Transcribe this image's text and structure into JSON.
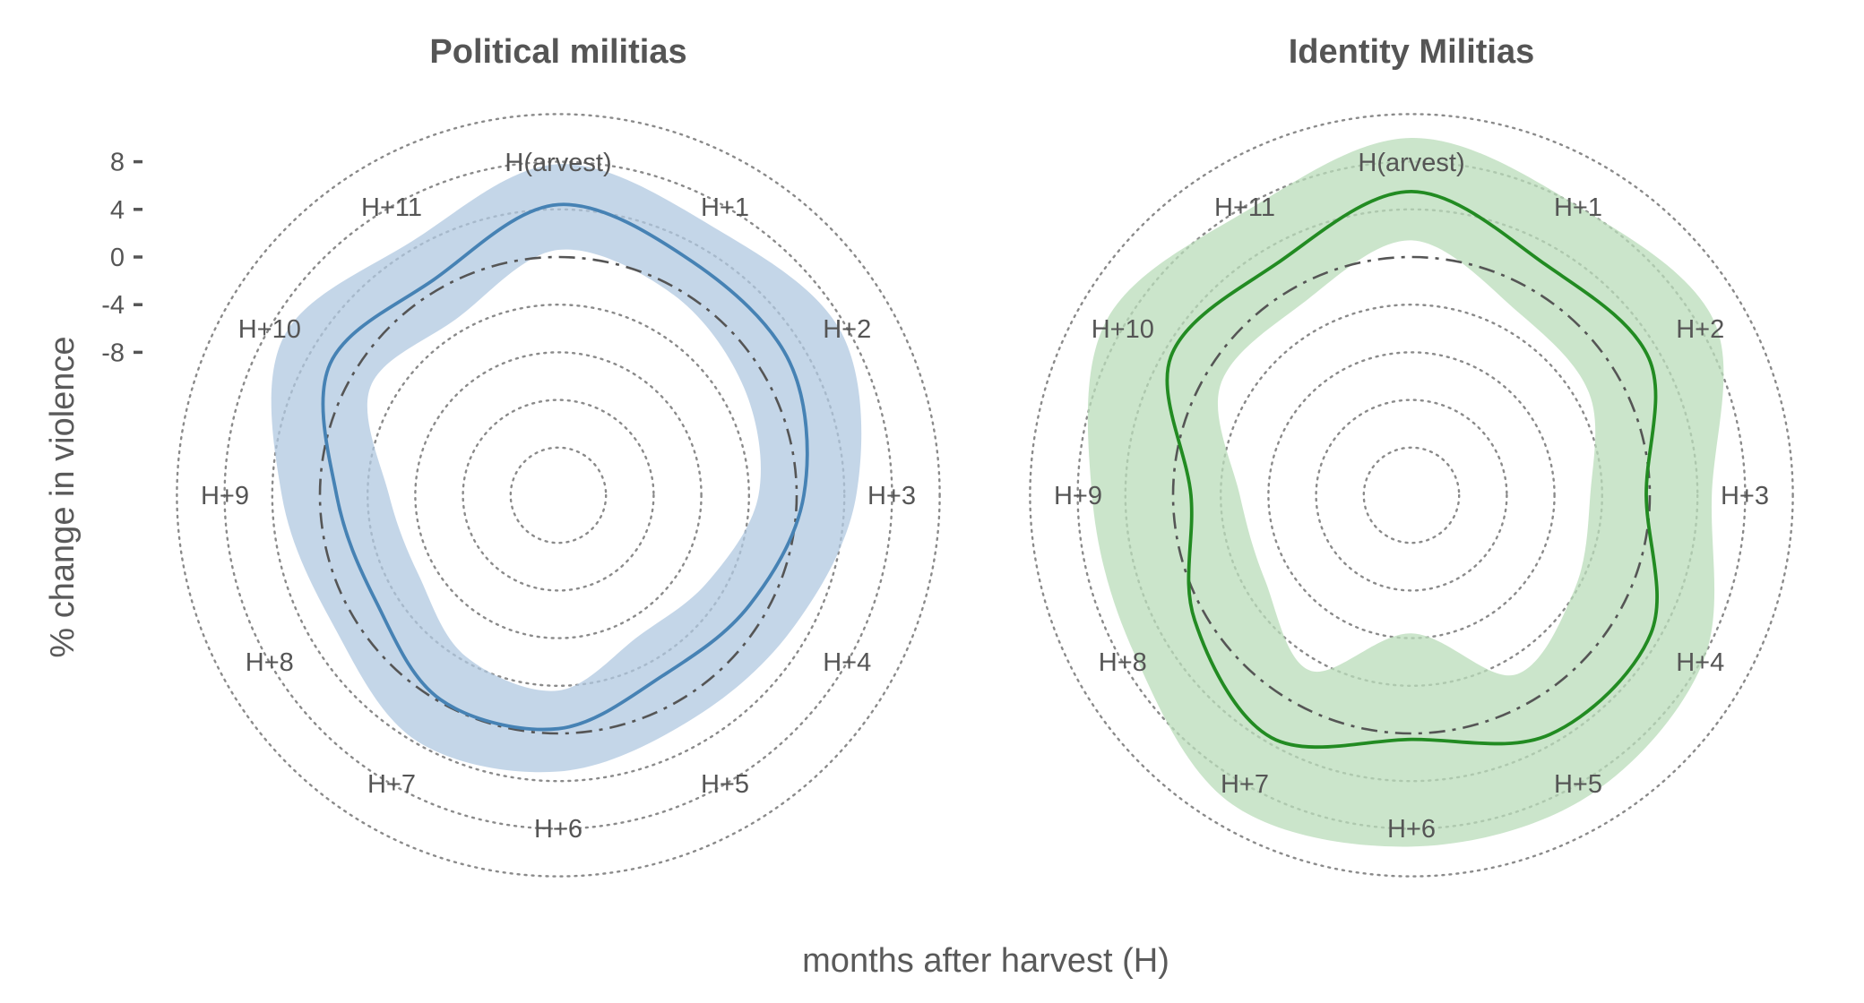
{
  "axis": {
    "y_label": "% change in violence",
    "x_label": "months after harvest (H)"
  },
  "chart_data": [
    {
      "type": "radar",
      "title": "Political militias",
      "categories": [
        "H(arvest)",
        "H+1",
        "H+2",
        "H+3",
        "H+4",
        "H+5",
        "H+6",
        "H+7",
        "H+8",
        "H+9",
        "H+10",
        "H+11"
      ],
      "r_ticks": [
        8,
        4,
        0,
        -4,
        -8
      ],
      "r_tick_labels": [
        "8",
        "4",
        "0",
        "-4",
        "-8"
      ],
      "r_range": [
        -20,
        12
      ],
      "grid": "dotted circles",
      "reference_ring": 0,
      "color": "#4682b4",
      "band_color": "#b0c8e0",
      "series": [
        {
          "values": [
            4.4,
            2.6,
            2.4,
            0.6,
            -1.5,
            -2.5,
            -0.4,
            -0.2,
            -2.3,
            -1.4,
            2.1,
            0.9
          ],
          "lower": [
            0.6,
            -0.6,
            -2.0,
            -3.2,
            -5.5,
            -6.4,
            -3.6,
            -4.4,
            -6.5,
            -5.8,
            -1.8,
            -2.9
          ],
          "upper": [
            7.8,
            6.0,
            7.4,
            5.0,
            2.6,
            1.9,
            3.2,
            3.8,
            1.8,
            3.2,
            6.6,
            4.6
          ]
        }
      ]
    },
    {
      "type": "radar",
      "title": "Identity Militias",
      "categories": [
        "H(arvest)",
        "H+1",
        "H+2",
        "H+3",
        "H+4",
        "H+5",
        "H+6",
        "H+7",
        "H+8",
        "H+9",
        "H+10",
        "H+11"
      ],
      "r_ticks": [
        8,
        4,
        0,
        -4,
        -8
      ],
      "r_tick_labels": [
        "8",
        "4",
        "0",
        "-4",
        "-8"
      ],
      "r_range": [
        -20,
        12
      ],
      "grid": "dotted circles",
      "reference_ring": 0,
      "color": "#228b22",
      "band_color": "#b9dcb9",
      "series": [
        {
          "values": [
            5.5,
            2.4,
            3.0,
            -0.3,
            3.2,
            3.2,
            0.5,
            3.5,
            1.0,
            -1.5,
            3.3,
            2.5
          ],
          "lower": [
            1.4,
            -2.2,
            -2.8,
            -5.0,
            -4.2,
            -2.6,
            -8.4,
            -3.0,
            -5.8,
            -5.6,
            -1.5,
            -1.5
          ],
          "upper": [
            10.0,
            8.0,
            9.3,
            5.2,
            8.2,
            9.3,
            9.5,
            10.0,
            6.8,
            6.8,
            9.5,
            7.6
          ]
        }
      ]
    }
  ]
}
